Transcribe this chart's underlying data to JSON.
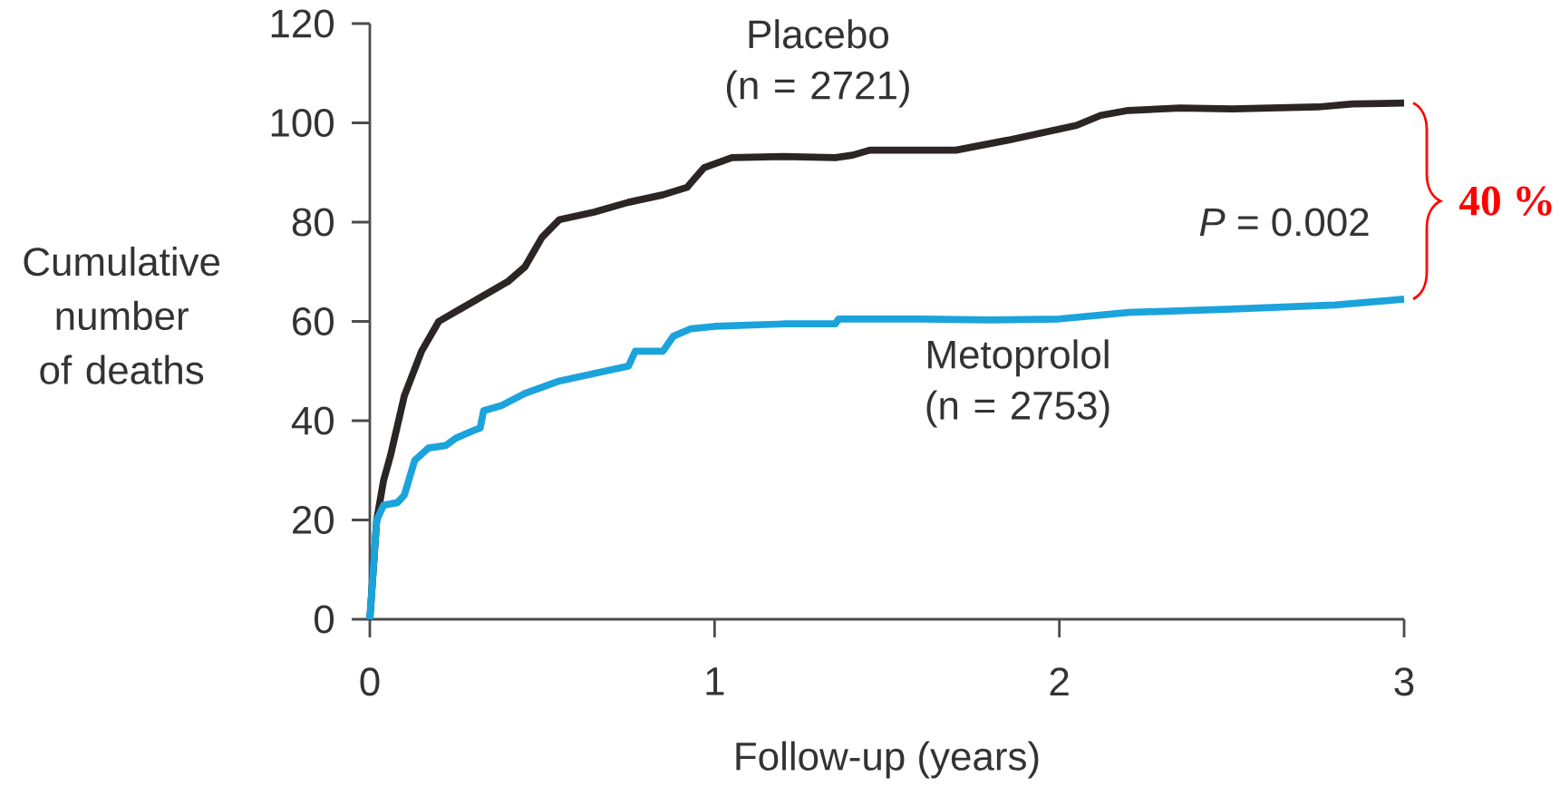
{
  "chart_data": {
    "type": "line",
    "xlabel": "Follow-up (years)",
    "ylabel": "Cumulative number of deaths",
    "xlim": [
      0,
      3
    ],
    "ylim": [
      0,
      120
    ],
    "xticks": [
      0,
      1,
      2,
      3
    ],
    "yticks": [
      0,
      20,
      40,
      60,
      80,
      100,
      120
    ],
    "grid": false,
    "legend": false,
    "marker": "none",
    "line_style": "solid",
    "series": [
      {
        "name": "Placebo (n = 2721)",
        "color": "#2b2523",
        "x": [
          0,
          0.02,
          0.04,
          0.06,
          0.1,
          0.15,
          0.2,
          0.3,
          0.4,
          0.45,
          0.5,
          0.55,
          0.65,
          0.75,
          0.85,
          0.92,
          0.97,
          1.05,
          1.2,
          1.35,
          1.4,
          1.45,
          1.7,
          1.85,
          1.95,
          2.05,
          2.12,
          2.2,
          2.35,
          2.5,
          2.75,
          2.85,
          3
        ],
        "values": [
          0,
          20,
          28,
          33,
          45,
          54,
          60,
          64,
          68,
          71,
          77,
          80.5,
          82,
          84,
          85.5,
          87,
          91,
          93,
          93.2,
          93,
          93.5,
          94.5,
          94.5,
          96.5,
          98,
          99.5,
          101.5,
          102.5,
          103,
          102.8,
          103.2,
          103.8,
          104
        ]
      },
      {
        "name": "Metoprolol (n = 2753)",
        "color": "#1ba3dc",
        "x": [
          0,
          0.02,
          0.04,
          0.08,
          0.1,
          0.13,
          0.17,
          0.22,
          0.25,
          0.3,
          0.32,
          0.33,
          0.38,
          0.45,
          0.55,
          0.65,
          0.75,
          0.77,
          0.85,
          0.88,
          0.93,
          1,
          1.2,
          1.35,
          1.36,
          1.6,
          1.8,
          2,
          2.2,
          2.5,
          2.8,
          3
        ],
        "values": [
          0,
          20,
          23,
          23.5,
          25,
          32,
          34.5,
          35,
          36.5,
          38,
          38.5,
          42,
          43,
          45.5,
          48,
          49.5,
          51,
          54,
          54,
          57,
          58.5,
          59,
          59.5,
          59.5,
          60.5,
          60.5,
          60.3,
          60.5,
          61.8,
          62.5,
          63.3,
          64.5
        ]
      }
    ],
    "annotations": [
      "*P* = 0.002",
      "40 %"
    ]
  }
}
